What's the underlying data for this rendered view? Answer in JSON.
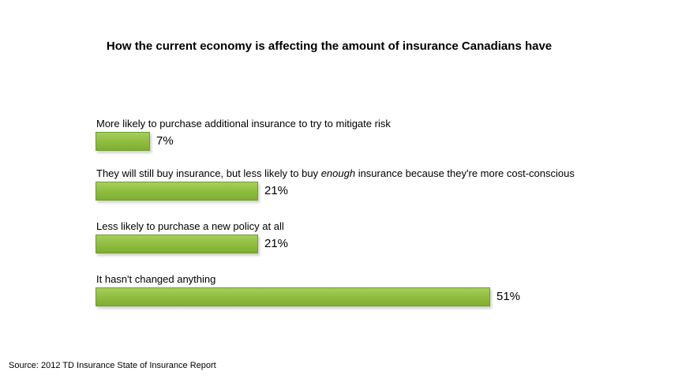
{
  "chart_data": {
    "type": "bar",
    "orientation": "horizontal",
    "title": "How the current economy is affecting the amount of insurance Canadians have",
    "categories": [
      "More likely to purchase additional insurance to try to mitigate risk",
      "They will still buy insurance, but less likely to buy enough insurance because they're more cost-conscious",
      "Less likely to purchase a new policy at all",
      "It hasn't changed anything"
    ],
    "category_rich": [
      {
        "before": "More likely to purchase additional insurance to try to mitigate risk",
        "emphasis": "",
        "after": ""
      },
      {
        "before": "They will still buy insurance, but less likely to buy ",
        "emphasis": "enough",
        "after": " insurance because they're more cost-conscious"
      },
      {
        "before": "Less likely to purchase a new policy at all",
        "emphasis": "",
        "after": ""
      },
      {
        "before": "It hasn't changed anything",
        "emphasis": "",
        "after": ""
      }
    ],
    "values": [
      7,
      21,
      21,
      51
    ],
    "value_labels": [
      "7%",
      "21%",
      "21%",
      "51%"
    ],
    "unit": "%",
    "xlim": [
      0,
      51
    ],
    "grid": false,
    "legend": "none",
    "bar_color": "#94c145",
    "bar_border_color": "#6e9c2c"
  },
  "source": "Source: 2012 TD Insurance State of Insurance Report"
}
